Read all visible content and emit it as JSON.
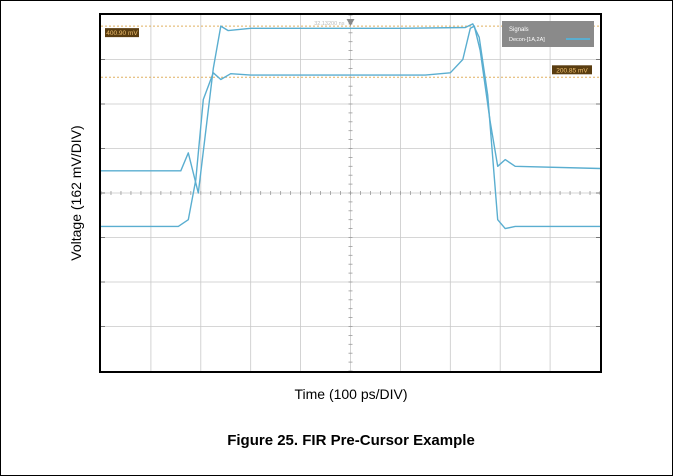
{
  "caption": "Figure 25.  FIR Pre-Cursor Example",
  "chart_data": {
    "type": "line",
    "xlabel": "Time (100 ps/DIV)",
    "ylabel": "Voltage (162 mV/DIV)",
    "trigger_label": "32.13200 ns",
    "legend": {
      "title": "Signals",
      "entry": "Decon-[1A,2A]",
      "position": "top-right"
    },
    "cursor_labels": [
      "400.90 mV",
      "200.85 mV"
    ],
    "grid": true,
    "divisions": {
      "x": 10,
      "y": 8
    },
    "colors": {
      "trace": "#5aaed0",
      "cursor": "#e0b060",
      "grid": "#c8c8c8",
      "label_bg": "#5a3d10",
      "label_text": "#f0c070"
    },
    "series": [
      {
        "values": [
          [
            0,
            0.5
          ],
          [
            1.6,
            0.5
          ],
          [
            1.75,
            0.9
          ],
          [
            1.95,
            0.0
          ],
          [
            2.25,
            2.8
          ],
          [
            2.4,
            3.75
          ],
          [
            2.55,
            3.65
          ],
          [
            3,
            3.7
          ],
          [
            6,
            3.7
          ],
          [
            7.3,
            3.72
          ],
          [
            7.45,
            3.8
          ],
          [
            7.58,
            3.5
          ],
          [
            7.75,
            2.2
          ],
          [
            7.95,
            -0.6
          ],
          [
            8.1,
            -0.8
          ],
          [
            8.3,
            -0.75
          ],
          [
            10,
            -0.75
          ]
        ]
      },
      {
        "values": [
          [
            0,
            -0.75
          ],
          [
            1.55,
            -0.75
          ],
          [
            1.75,
            -0.6
          ],
          [
            1.9,
            0.3
          ],
          [
            2.05,
            2.1
          ],
          [
            2.25,
            2.7
          ],
          [
            2.4,
            2.55
          ],
          [
            2.6,
            2.68
          ],
          [
            3,
            2.65
          ],
          [
            6.5,
            2.65
          ],
          [
            7.0,
            2.7
          ],
          [
            7.25,
            3.0
          ],
          [
            7.4,
            3.7
          ],
          [
            7.48,
            3.75
          ],
          [
            7.6,
            3.2
          ],
          [
            7.8,
            1.6
          ],
          [
            7.95,
            0.6
          ],
          [
            8.1,
            0.75
          ],
          [
            8.3,
            0.6
          ],
          [
            10,
            0.55
          ]
        ]
      }
    ],
    "cursors_y": [
      3.75,
      2.6
    ]
  }
}
